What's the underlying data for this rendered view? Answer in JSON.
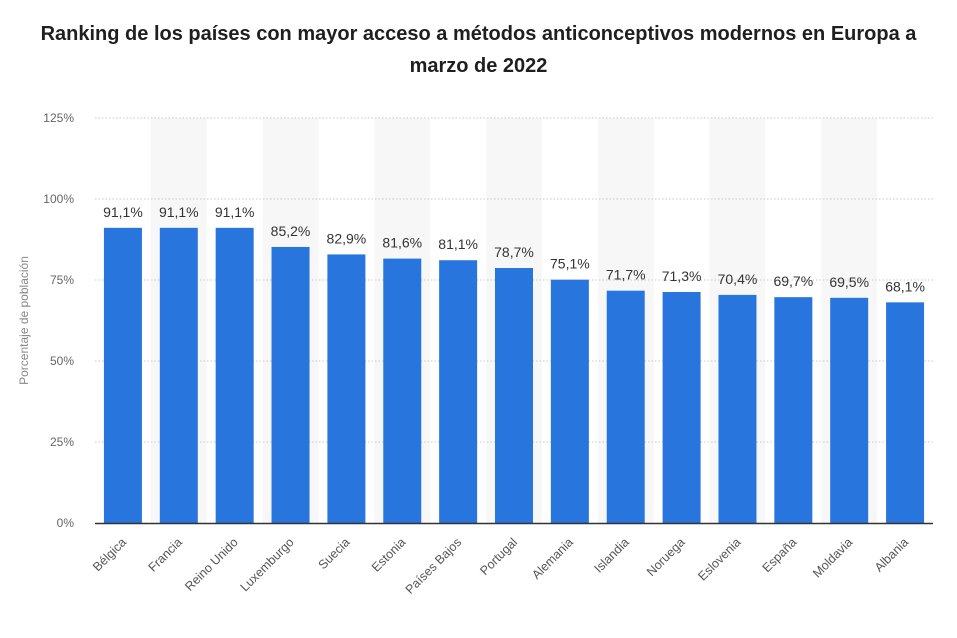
{
  "chart_data": {
    "type": "bar",
    "title": "Ranking de los países con mayor acceso a métodos anticonceptivos modernos en Europa a marzo de 2022",
    "ylabel": "Porcentaje de población",
    "xlabel": "",
    "ylim": [
      0,
      125
    ],
    "yticks": [
      "0%",
      "25%",
      "50%",
      "75%",
      "100%",
      "125%"
    ],
    "categories": [
      "Bélgica",
      "Francia",
      "Reino Unido",
      "Luxemburgo",
      "Suecia",
      "Estonia",
      "Países Bajos",
      "Portugal",
      "Alemania",
      "Islandia",
      "Noruega",
      "Eslovenia",
      "España",
      "Moldavia",
      "Albania"
    ],
    "values": [
      91.1,
      91.1,
      91.1,
      85.2,
      82.9,
      81.6,
      81.1,
      78.7,
      75.1,
      71.7,
      71.3,
      70.4,
      69.7,
      69.5,
      68.1
    ],
    "value_labels": [
      "91,1%",
      "91,1%",
      "91,1%",
      "85,2%",
      "82,9%",
      "81,6%",
      "81,1%",
      "78,7%",
      "75,1%",
      "71,7%",
      "71,3%",
      "70,4%",
      "69,7%",
      "69,5%",
      "68,1%"
    ],
    "bar_color": "#2876dd",
    "band_color": "#f7f7f7",
    "grid": true
  }
}
